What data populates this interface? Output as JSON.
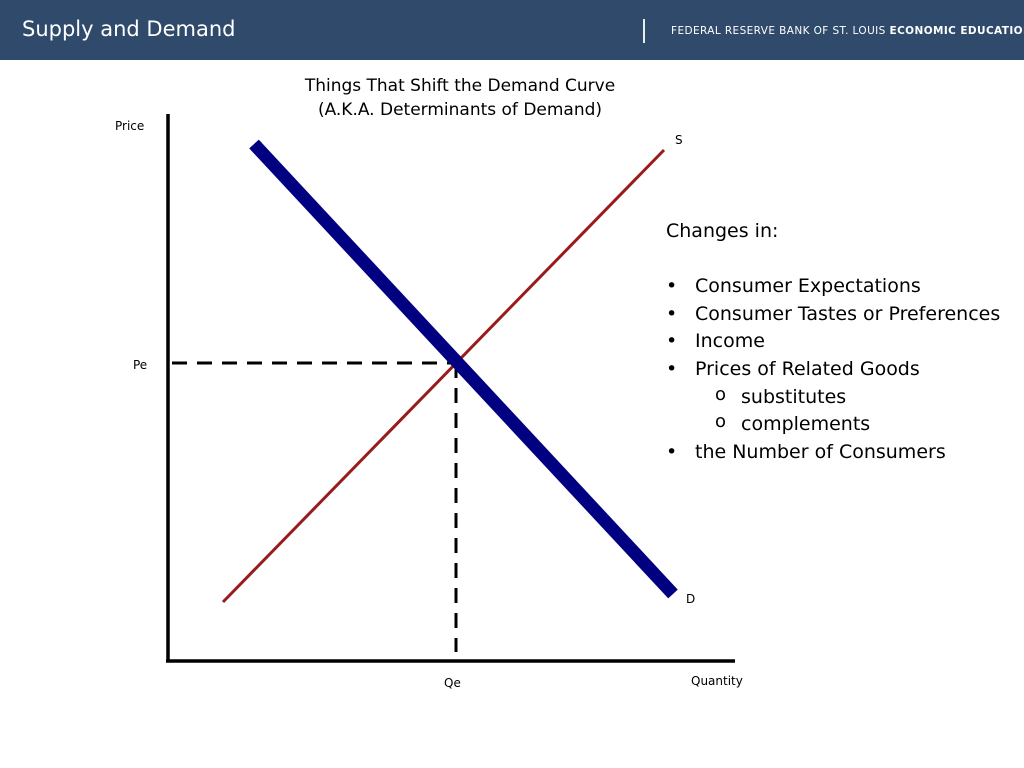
{
  "header": {
    "title": "Supply and Demand",
    "org_regular": "FEDERAL RESERVE BANK OF ST. LOUIS",
    "org_bold": "ECONOMIC EDUCATION"
  },
  "diagram": {
    "title_line1": "Things That Shift the Demand Curve",
    "title_line2": "(A.K.A. Determinants of Demand)",
    "y_axis_label": "Price",
    "x_axis_label": "Quantity",
    "supply_label": "S",
    "demand_label": "D",
    "price_equilibrium_label": "Pe",
    "quantity_equilibrium_label": "Qe",
    "colors": {
      "supply": "#9a1b1b",
      "demand": "#000080",
      "axes": "#000000"
    }
  },
  "determinants": {
    "heading": "Changes in:",
    "items": [
      {
        "text": "Consumer Expectations"
      },
      {
        "text": "Consumer Tastes or Preferences"
      },
      {
        "text": "Income"
      },
      {
        "text": "Prices of Related Goods",
        "subitems": [
          "substitutes",
          "complements"
        ]
      },
      {
        "text": "the Number of Consumers"
      }
    ],
    "bullet": "•",
    "sub_bullet": "o"
  }
}
